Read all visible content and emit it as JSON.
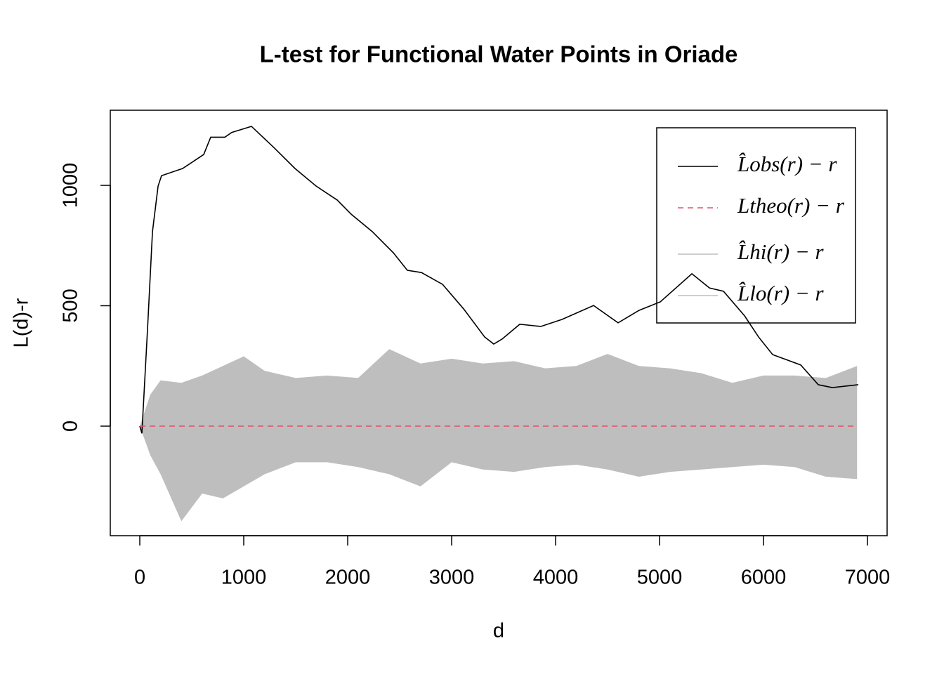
{
  "chart_data": {
    "type": "line",
    "title": "L-test for Functional Water Points in Oriade",
    "x_label": "d",
    "y_label": "L(d)-r",
    "xlim": [
      -284,
      7189
    ],
    "ylim": [
      -455,
      1312
    ],
    "xticks": [
      0,
      1000,
      2000,
      3000,
      4000,
      5000,
      6000,
      7000
    ],
    "yticks": [
      0,
      500,
      1000
    ],
    "legend": "top-right",
    "series": [
      {
        "name": "L̂obs(r) − r",
        "color": "#000000",
        "style": "solid",
        "x": [
          0,
          20,
          74,
          122,
          176,
          209,
          412,
          615,
          682,
          818,
          885,
          1074,
          1290,
          1493,
          1696,
          1899,
          2034,
          2236,
          2439,
          2574,
          2709,
          2912,
          3115,
          3318,
          3405,
          3486,
          3655,
          3858,
          4061,
          4365,
          4601,
          4804,
          5007,
          5311,
          5480,
          5615,
          5818,
          5953,
          6088,
          6358,
          6527,
          6662,
          6912
        ],
        "values": [
          0,
          -30,
          400,
          808,
          997,
          1040,
          1070,
          1128,
          1200,
          1200,
          1220,
          1245,
          1157,
          1070,
          997,
          939,
          880,
          808,
          720,
          647,
          638,
          589,
          487,
          370,
          341,
          362,
          423,
          414,
          443,
          501,
          429,
          481,
          516,
          633,
          574,
          560,
          458,
          370,
          297,
          254,
          172,
          160,
          172
        ]
      },
      {
        "name": "Ltheo(r) − r",
        "color": "#df536b",
        "style": "dashed",
        "x": [
          0,
          6900
        ],
        "values": [
          0,
          0
        ]
      },
      {
        "name": "L̂hi(r) − r",
        "color": "#bebebe",
        "style": "band-top",
        "x": [
          0,
          100,
          200,
          400,
          600,
          800,
          1000,
          1200,
          1500,
          1800,
          2100,
          2400,
          2700,
          3000,
          3300,
          3600,
          3900,
          4200,
          4500,
          4800,
          5100,
          5400,
          5700,
          6000,
          6300,
          6600,
          6900
        ],
        "values": [
          0,
          130,
          190,
          180,
          210,
          250,
          290,
          230,
          200,
          210,
          200,
          320,
          260,
          280,
          260,
          270,
          240,
          250,
          300,
          250,
          240,
          220,
          180,
          210,
          210,
          200,
          250
        ]
      },
      {
        "name": "L̂lo(r) − r",
        "color": "#bebebe",
        "style": "band-bottom",
        "x": [
          0,
          100,
          200,
          400,
          600,
          800,
          1000,
          1200,
          1500,
          1800,
          2100,
          2400,
          2700,
          3000,
          3300,
          3600,
          3900,
          4200,
          4500,
          4800,
          5100,
          5400,
          5700,
          6000,
          6300,
          6600,
          6900
        ],
        "values": [
          0,
          -120,
          -200,
          -395,
          -280,
          -300,
          -250,
          -200,
          -150,
          -150,
          -170,
          -200,
          -250,
          -150,
          -180,
          -190,
          -170,
          -160,
          -180,
          -210,
          -190,
          -180,
          -170,
          -160,
          -170,
          -210,
          -220
        ]
      }
    ]
  }
}
